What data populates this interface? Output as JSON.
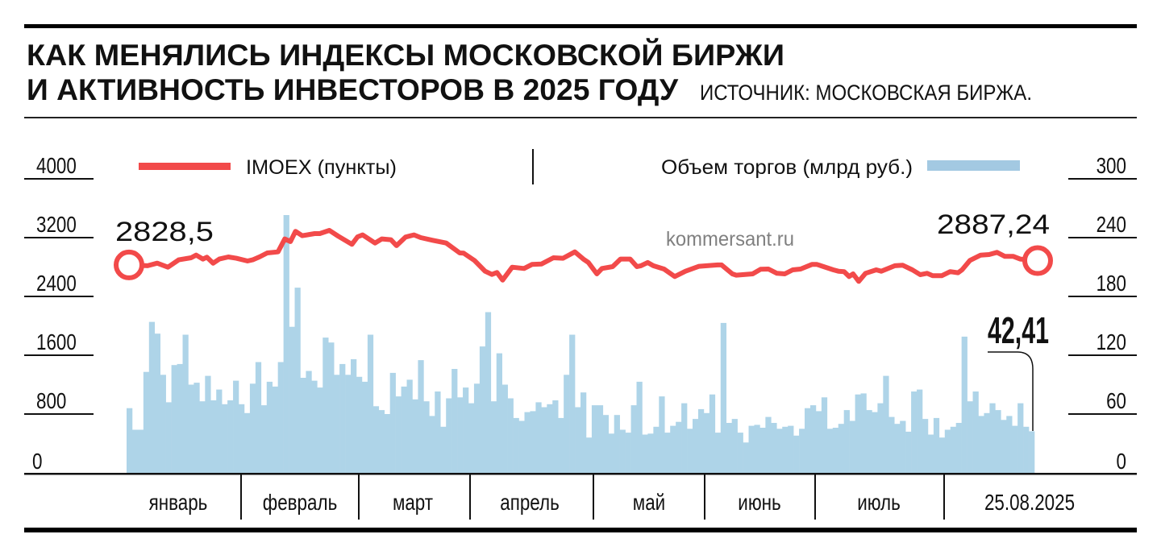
{
  "title": {
    "line1": "КАК МЕНЯЛИСЬ ИНДЕКСЫ МОСКОВСКОЙ БИРЖИ",
    "line2": "И АКТИВНОСТЬ ИНВЕСТОРОВ В 2025 ГОДУ",
    "source": "ИСТОЧНИК: МОСКОВСКАЯ БИРЖА."
  },
  "watermark": "kommersant.ru",
  "colors": {
    "line": "#f24a4a",
    "bars": "#aed4e8",
    "ink": "#111111"
  },
  "chart_data": {
    "type": "bar+line",
    "legend": {
      "line_label": "IMOEX (пункты)",
      "bar_label": "Объем торгов (млрд руб.)",
      "placement": "top"
    },
    "left_axis": {
      "label": "IMOEX",
      "ticks": [
        "4000",
        "3200",
        "2400",
        "1600",
        "800",
        "0"
      ],
      "range": [
        0,
        4000
      ]
    },
    "right_axis": {
      "label": "Объем торгов",
      "ticks": [
        "300",
        "240",
        "180",
        "120",
        "60",
        "0"
      ],
      "range": [
        0,
        300
      ]
    },
    "months": [
      "январь",
      "февраль",
      "март",
      "апрель",
      "май",
      "июнь",
      "июль",
      "25.08.2025"
    ],
    "annotations": {
      "start_value": "2828,5",
      "end_value": "2887,24",
      "last_volume": "42,41"
    },
    "imoex": {
      "days": 161,
      "points": [
        [
          0,
          2828.5
        ],
        [
          3.3,
          2817
        ],
        [
          5,
          2853
        ],
        [
          6.9,
          2798
        ],
        [
          8.8,
          2897
        ],
        [
          11,
          2926
        ],
        [
          11.9,
          2962
        ],
        [
          13.1,
          2908
        ],
        [
          13.8,
          2934
        ],
        [
          14.9,
          2853
        ],
        [
          16,
          2908
        ],
        [
          17.6,
          2937
        ],
        [
          19,
          2919
        ],
        [
          21,
          2882
        ],
        [
          21.9,
          2897
        ],
        [
          23.1,
          2937
        ],
        [
          24.5,
          2992
        ],
        [
          26.4,
          3006
        ],
        [
          27.6,
          3182
        ],
        [
          28.6,
          3146
        ],
        [
          29.5,
          3285
        ],
        [
          30.7,
          3226
        ],
        [
          32.9,
          3255
        ],
        [
          33.8,
          3255
        ],
        [
          35.5,
          3299
        ],
        [
          37.1,
          3219
        ],
        [
          39.5,
          3109
        ],
        [
          40.5,
          3211
        ],
        [
          41.4,
          3237
        ],
        [
          43.6,
          3127
        ],
        [
          44.8,
          3182
        ],
        [
          46.4,
          3171
        ],
        [
          47.4,
          3091
        ],
        [
          49,
          3208
        ],
        [
          50.5,
          3237
        ],
        [
          51.7,
          3200
        ],
        [
          53.8,
          3164
        ],
        [
          56.2,
          3127
        ],
        [
          58.6,
          2992
        ],
        [
          59.3,
          2988
        ],
        [
          61.2,
          2890
        ],
        [
          63.1,
          2743
        ],
        [
          64.3,
          2699
        ],
        [
          65.2,
          2726
        ],
        [
          66.2,
          2623
        ],
        [
          67.9,
          2798
        ],
        [
          70,
          2780
        ],
        [
          71.4,
          2835
        ],
        [
          73.1,
          2842
        ],
        [
          75.2,
          2926
        ],
        [
          76.9,
          2919
        ],
        [
          79,
          3006
        ],
        [
          80.5,
          2908
        ],
        [
          81.4,
          2861
        ],
        [
          82.9,
          2707
        ],
        [
          83.8,
          2780
        ],
        [
          85.7,
          2806
        ],
        [
          87.1,
          2908
        ],
        [
          88.8,
          2908
        ],
        [
          90,
          2806
        ],
        [
          90.7,
          2817
        ],
        [
          91.9,
          2861
        ],
        [
          92.9,
          2817
        ],
        [
          94.8,
          2773
        ],
        [
          96.7,
          2671
        ],
        [
          98.6,
          2743
        ],
        [
          101,
          2810
        ],
        [
          104.3,
          2828
        ],
        [
          105,
          2828
        ],
        [
          106.9,
          2707
        ],
        [
          107.6,
          2689
        ],
        [
          110.5,
          2707
        ],
        [
          111.9,
          2769
        ],
        [
          113.3,
          2773
        ],
        [
          114.8,
          2715
        ],
        [
          116.2,
          2707
        ],
        [
          117.6,
          2762
        ],
        [
          119,
          2773
        ],
        [
          121,
          2835
        ],
        [
          121.9,
          2835
        ],
        [
          124.8,
          2762
        ],
        [
          125.7,
          2743
        ],
        [
          126.7,
          2737
        ],
        [
          127.6,
          2671
        ],
        [
          128.3,
          2707
        ],
        [
          129.3,
          2605
        ],
        [
          130.5,
          2715
        ],
        [
          132.4,
          2762
        ],
        [
          133.3,
          2743
        ],
        [
          135.7,
          2817
        ],
        [
          137.1,
          2824
        ],
        [
          138.8,
          2762
        ],
        [
          140.2,
          2696
        ],
        [
          141.4,
          2715
        ],
        [
          142.4,
          2682
        ],
        [
          144,
          2682
        ],
        [
          145.5,
          2737
        ],
        [
          146.9,
          2722
        ],
        [
          147.6,
          2762
        ],
        [
          149,
          2890
        ],
        [
          150.9,
          2962
        ],
        [
          152.4,
          2970
        ],
        [
          153.8,
          3000
        ],
        [
          155.2,
          2945
        ],
        [
          156.7,
          2945
        ],
        [
          157.9,
          2908
        ],
        [
          161,
          2887.24
        ]
      ]
    },
    "volume": [
      66,
      44,
      44,
      103,
      154,
      142,
      100,
      72,
      110,
      111,
      141,
      90,
      92,
      73,
      99,
      74,
      85,
      70,
      74,
      94,
      70,
      61,
      91,
      113,
      69,
      93,
      88,
      113,
      263,
      149,
      189,
      97,
      104,
      94,
      87,
      138,
      133,
      100,
      111,
      100,
      116,
      98,
      93,
      141,
      68,
      64,
      60,
      102,
      78,
      88,
      95,
      75,
      115,
      73,
      58,
      83,
      47,
      76,
      106,
      77,
      87,
      71,
      91,
      129,
      164,
      73,
      122,
      90,
      76,
      56,
      53,
      62,
      63,
      72,
      67,
      70,
      74,
      56,
      100,
      141,
      67,
      82,
      36,
      69,
      69,
      59,
      40,
      59,
      44,
      41,
      69,
      93,
      39,
      40,
      47,
      78,
      41,
      48,
      52,
      71,
      45,
      55,
      65,
      61,
      80,
      41,
      153,
      51,
      55,
      41,
      31,
      48,
      49,
      46,
      57,
      51,
      45,
      47,
      48,
      38,
      45,
      66,
      69,
      63,
      77,
      45,
      46,
      50,
      64,
      53,
      80,
      81,
      64,
      62,
      71,
      99,
      57,
      50,
      53,
      42,
      83,
      85,
      55,
      39,
      56,
      36,
      44,
      47,
      51,
      139,
      73,
      83,
      58,
      61,
      71,
      64,
      54,
      58,
      48,
      71,
      47,
      42.41
    ]
  }
}
